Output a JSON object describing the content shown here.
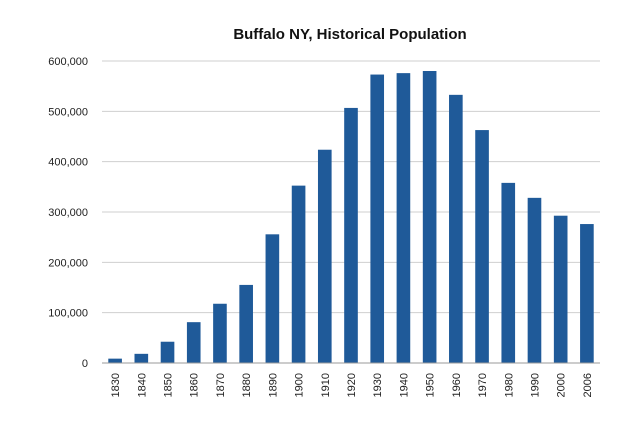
{
  "chart_data": {
    "type": "bar",
    "title": "Buffalo NY, Historical Population",
    "xlabel": "",
    "ylabel": "",
    "categories": [
      "1830",
      "1840",
      "1850",
      "1860",
      "1870",
      "1880",
      "1890",
      "1900",
      "1910",
      "1920",
      "1930",
      "1940",
      "1950",
      "1960",
      "1970",
      "1980",
      "1990",
      "2000",
      "2006"
    ],
    "values": [
      8653,
      18213,
      42261,
      81129,
      117714,
      155134,
      255664,
      352387,
      423715,
      506775,
      573076,
      575901,
      580132,
      532759,
      462768,
      357870,
      328123,
      292648,
      276059
    ],
    "ylim": [
      0,
      600000
    ],
    "yticks": [
      0,
      100000,
      200000,
      300000,
      400000,
      500000,
      600000
    ],
    "ytick_labels": [
      "0",
      "100,000",
      "200,000",
      "300,000",
      "400,000",
      "500,000",
      "600,000"
    ],
    "grid": true,
    "legend": "none",
    "bar_color": "#1f5a99"
  }
}
